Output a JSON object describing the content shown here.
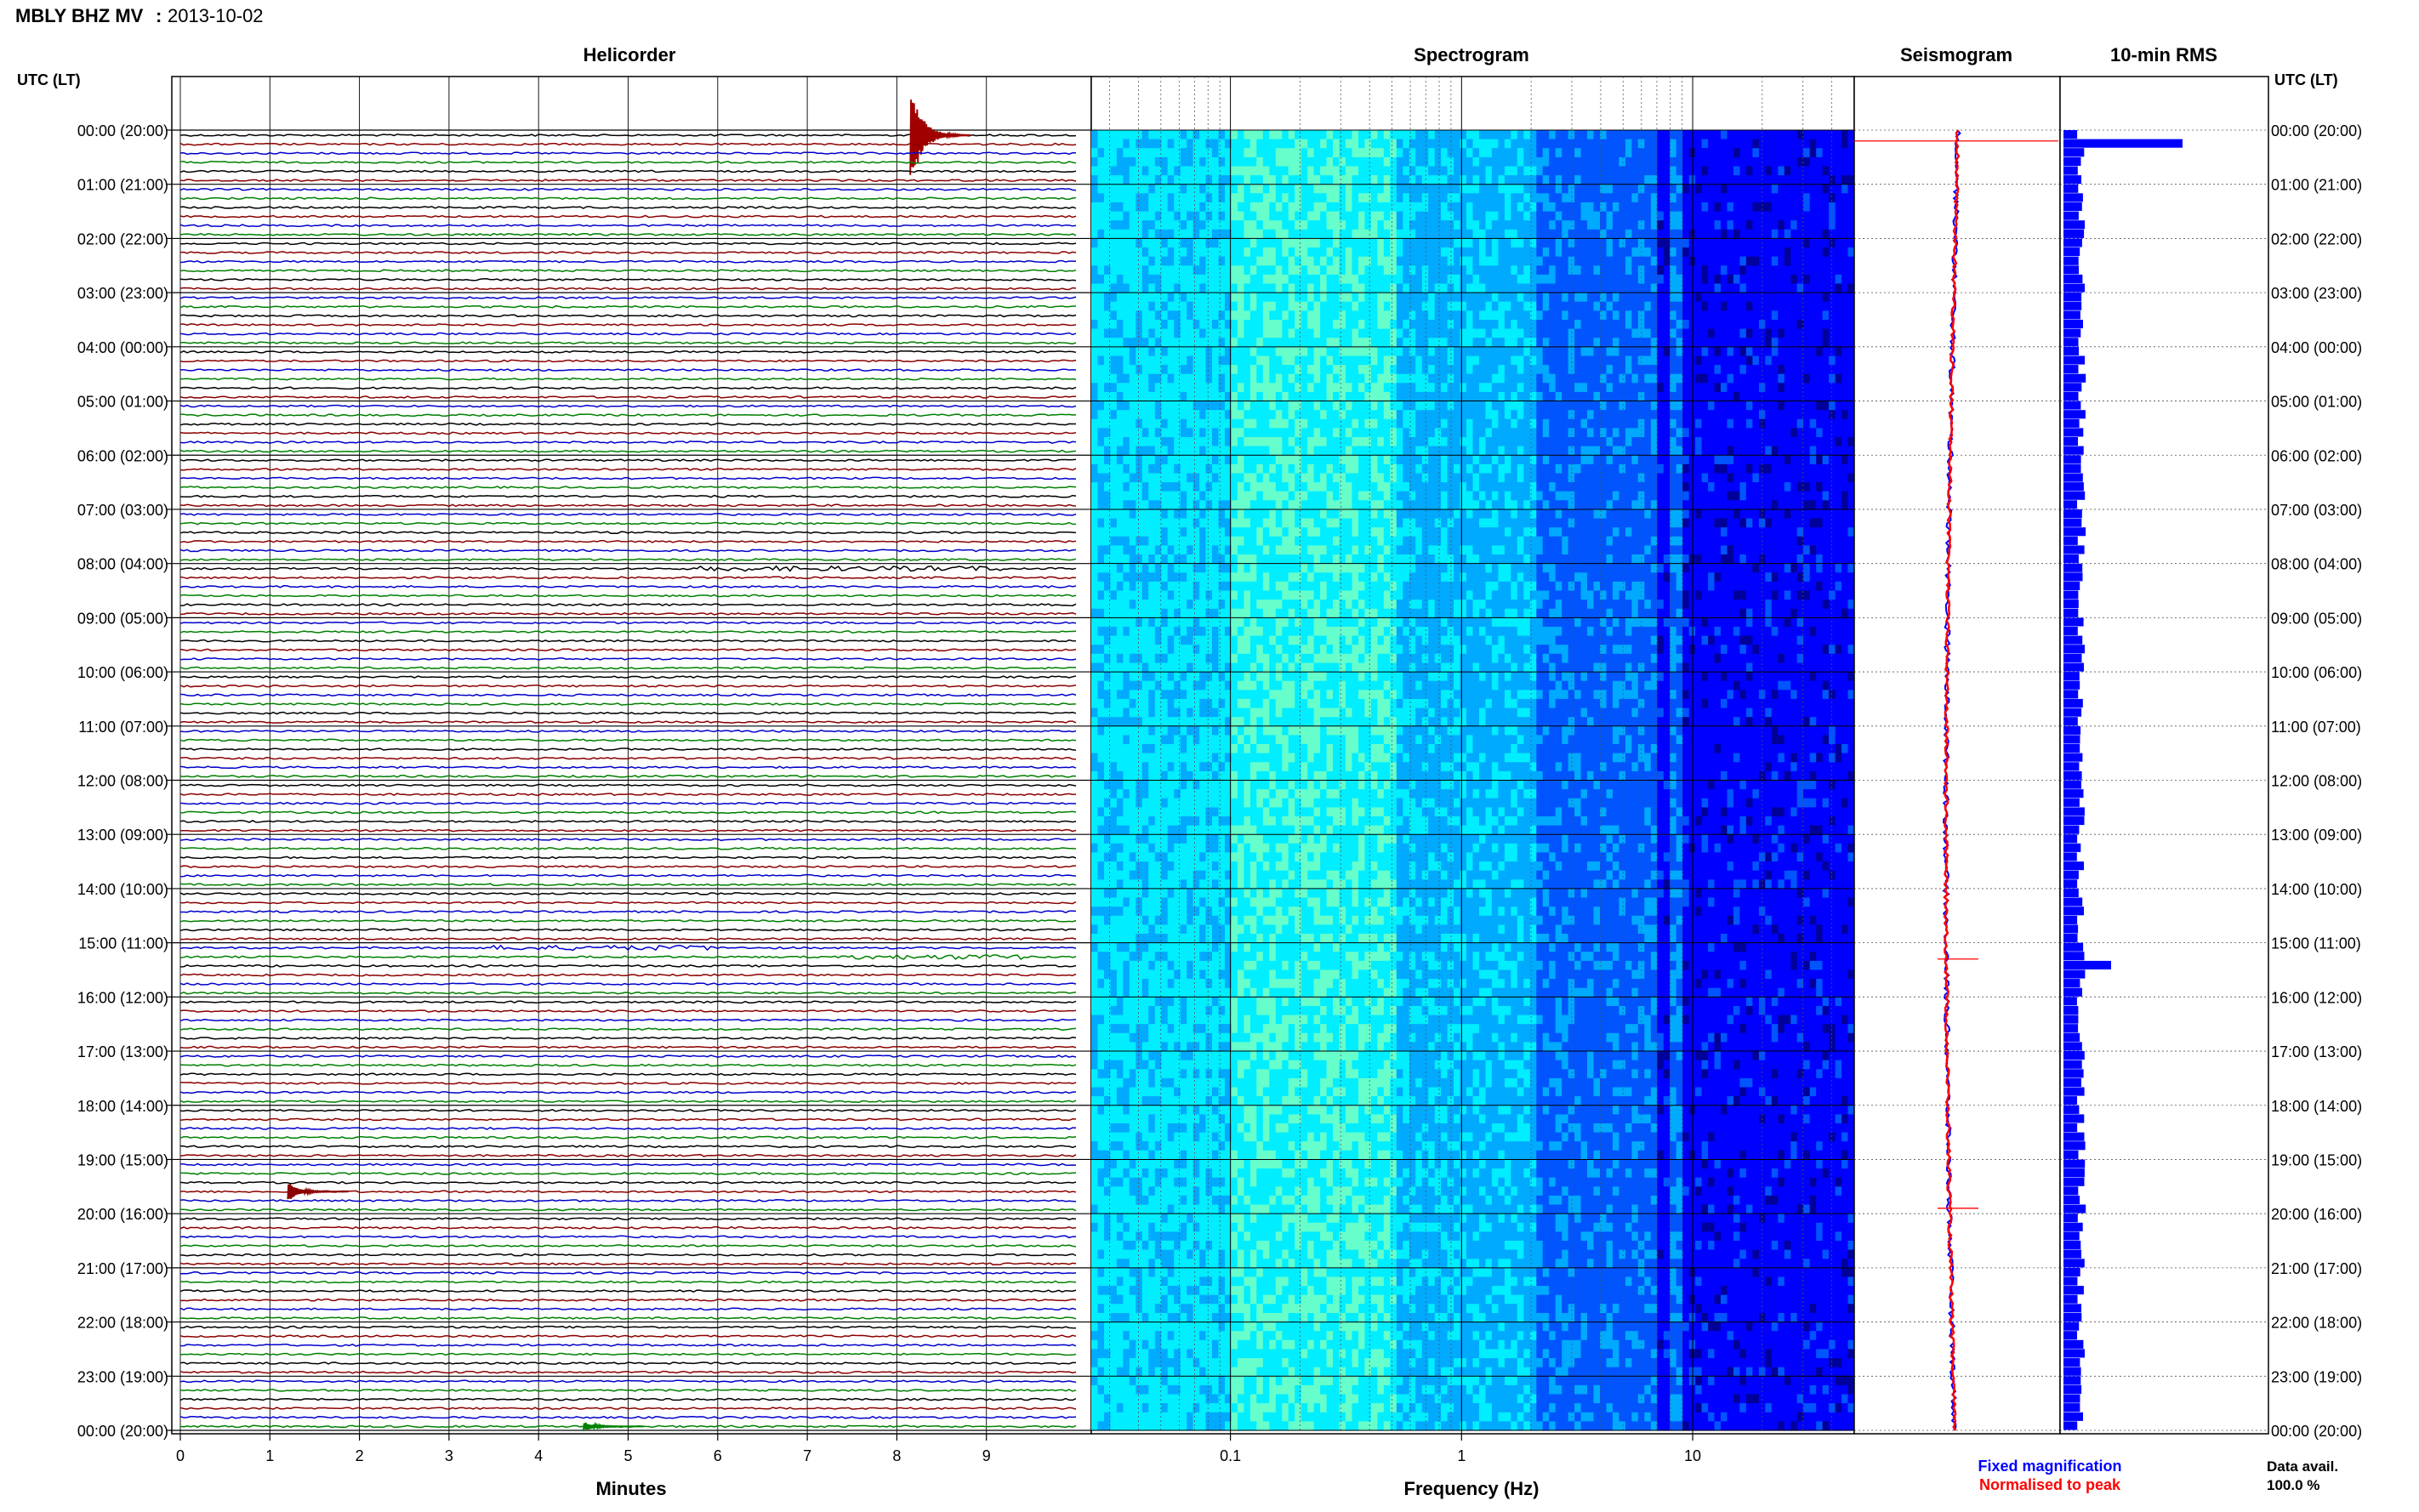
{
  "header": {
    "station": "MBLY BHZ MV",
    "date": "2013-10-02"
  },
  "colors": {
    "trace_cycle": [
      "#000000",
      "#8b0000",
      "#0000cc",
      "#008000"
    ],
    "event_color": "#a00000",
    "rms_bar": "#0000ff",
    "seismo_fixed": "#0000ff",
    "seismo_norm": "#ff0000",
    "spectrogram_ramp": [
      "#00009a",
      "#0000ff",
      "#0055ff",
      "#00aaff",
      "#00eeff",
      "#66ffcc"
    ]
  },
  "chart_data": [
    {
      "type": "line",
      "title": "Helicorder",
      "xlabel": "Minutes",
      "x_ticks": [
        "0",
        "1",
        "2",
        "3",
        "4",
        "5",
        "6",
        "7",
        "8",
        "9"
      ],
      "xlim": [
        0,
        10
      ],
      "y_axis_label": "UTC (LT)",
      "y_tick_labels": [
        "00:00 (20:00)",
        "01:00 (21:00)",
        "02:00 (22:00)",
        "03:00 (23:00)",
        "04:00 (00:00)",
        "05:00 (01:00)",
        "06:00 (02:00)",
        "07:00 (03:00)",
        "08:00 (04:00)",
        "09:00 (05:00)",
        "10:00 (06:00)",
        "11:00 (07:00)",
        "12:00 (08:00)",
        "13:00 (09:00)",
        "14:00 (10:00)",
        "15:00 (11:00)",
        "16:00 (12:00)",
        "17:00 (13:00)",
        "18:00 (14:00)",
        "19:00 (15:00)",
        "20:00 (16:00)",
        "21:00 (17:00)",
        "22:00 (18:00)",
        "23:00 (19:00)",
        "00:00 (20:00)"
      ],
      "lines_per_hour": 6,
      "traces": 144,
      "events": [
        {
          "line": 0,
          "minute": 8.15,
          "amplitude": 3.2
        },
        {
          "line": 117,
          "minute": 1.2,
          "amplitude": 0.5
        },
        {
          "line": 143,
          "minute": 4.5,
          "amplitude": 0.25
        }
      ],
      "noisy_bursts": [
        {
          "line": 48,
          "from_minute": 5.8,
          "to_minute": 9.2
        },
        {
          "line": 91,
          "from_minute": 7.5,
          "to_minute": 9.4
        },
        {
          "line": 90,
          "from_minute": 3.5,
          "to_minute": 6.0
        }
      ]
    },
    {
      "type": "heatmap",
      "title": "Spectrogram",
      "xlabel": "Frequency (Hz)",
      "x_scale": "log",
      "xlim": [
        0.025,
        50
      ],
      "x_ticks": [
        "0.1",
        "1",
        "10"
      ],
      "y_range_hours": [
        0,
        24
      ],
      "notes": [
        "persistent line near 8 Hz",
        "energy peak 0.15-0.4 Hz"
      ]
    },
    {
      "type": "line",
      "title": "Seismogram",
      "series": [
        {
          "name": "Fixed magnification"
        },
        {
          "name": "Normalised to peak"
        }
      ],
      "spike_hours": [
        0.2,
        15.3,
        19.9
      ]
    },
    {
      "type": "bar",
      "orientation": "horizontal",
      "title": "10-min RMS",
      "bins": 144,
      "peaks": [
        {
          "bin": 1,
          "value": 1.0
        },
        {
          "bin": 92,
          "value": 0.4
        },
        {
          "bin": 120,
          "value": 0.12
        }
      ],
      "baseline": 0.15
    }
  ],
  "footer": {
    "legend_fixed": "Fixed magnification",
    "legend_norm": "Normalised to peak",
    "data_avail_label": "Data avail.",
    "data_avail_value": "100.0 %"
  }
}
